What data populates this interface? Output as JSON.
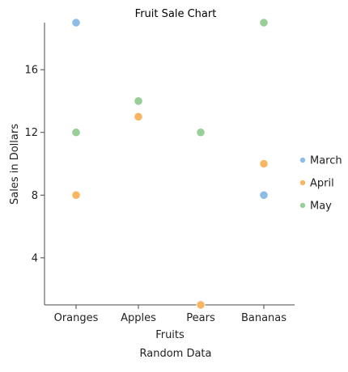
{
  "chart_data": {
    "type": "scatter",
    "title": "Fruit Sale Chart",
    "subtitle": "Random Data",
    "xlabel": "Fruits",
    "ylabel": "Sales in Dollars",
    "categories": [
      "Oranges",
      "Apples",
      "Pears",
      "Bananas"
    ],
    "yticks": [
      4,
      8,
      12,
      16
    ],
    "ylim": [
      1,
      19
    ],
    "grid": false,
    "legend_position": "right",
    "series": [
      {
        "name": "March",
        "color": "#8dbde6",
        "values": [
          19,
          13,
          12,
          8
        ]
      },
      {
        "name": "April",
        "color": "#f8b662",
        "values": [
          8,
          13,
          1,
          10
        ]
      },
      {
        "name": "May",
        "color": "#98cf98",
        "values": [
          12,
          14,
          12,
          19
        ]
      }
    ]
  }
}
